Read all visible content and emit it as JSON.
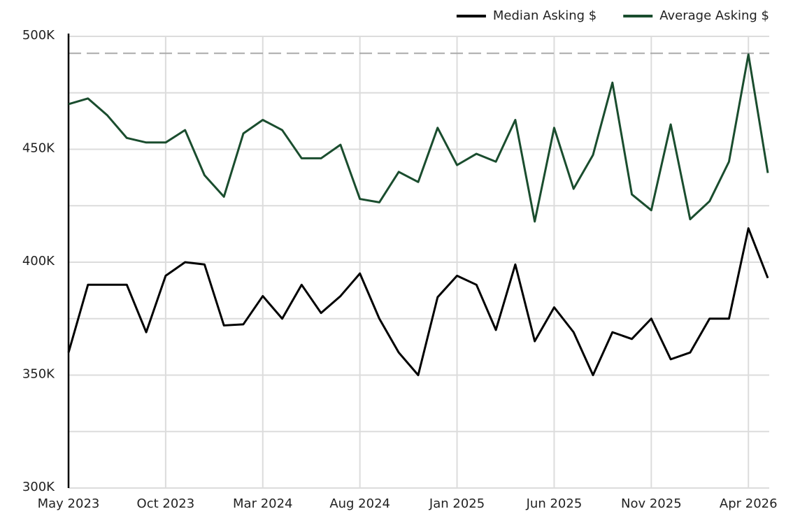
{
  "chart_data": {
    "type": "line",
    "categories": [
      "May 2023",
      null,
      null,
      null,
      null,
      "Oct 2023",
      null,
      null,
      null,
      null,
      "Mar 2024",
      null,
      null,
      null,
      null,
      "Aug 2024",
      null,
      null,
      null,
      null,
      "Jan 2025",
      null,
      null,
      null,
      null,
      "Jun 2025",
      null,
      null,
      null,
      null,
      "Nov 2025",
      null,
      null,
      null,
      null,
      "Apr 2026",
      null
    ],
    "series": [
      {
        "name": "Median Asking $",
        "color": "#000000",
        "values": [
          360000,
          390000,
          390000,
          390000,
          369000,
          394000,
          400000,
          399000,
          372000,
          372500,
          385000,
          375000,
          390000,
          377500,
          385000,
          395000,
          375000,
          360000,
          350000,
          384500,
          394000,
          390000,
          370000,
          399000,
          365000,
          380000,
          369000,
          350000,
          369000,
          366000,
          375000,
          357000,
          360000,
          375000,
          375000,
          415000,
          393000
        ]
      },
      {
        "name": "Average Asking $",
        "color": "#1a4d2e",
        "values": [
          470000,
          472500,
          465000,
          455000,
          453000,
          453000,
          458500,
          438500,
          429000,
          457000,
          463000,
          458500,
          446000,
          446000,
          452000,
          428000,
          426500,
          440000,
          435500,
          459500,
          443000,
          448000,
          444500,
          463000,
          418000,
          459500,
          432500,
          447500,
          479500,
          430000,
          423000,
          461000,
          419000,
          427000,
          444500,
          492000,
          439500
        ]
      }
    ],
    "ylim": [
      300000,
      500000
    ],
    "yticks": [
      {
        "value": 300000,
        "label": "300K"
      },
      {
        "value": 350000,
        "label": "350K"
      },
      {
        "value": 400000,
        "label": "400K"
      },
      {
        "value": 450000,
        "label": "450K"
      },
      {
        "value": 500000,
        "label": "500K"
      }
    ],
    "ygrid": [
      300000,
      325000,
      350000,
      375000,
      400000,
      425000,
      450000,
      475000,
      500000
    ],
    "reference_line": 492500,
    "grid": true,
    "legend": "top-right"
  }
}
